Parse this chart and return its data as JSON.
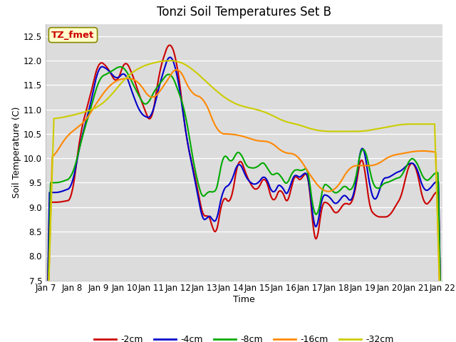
{
  "title": "Tonzi Soil Temperatures Set B",
  "xlabel": "Time",
  "ylabel": "Soil Temperature (C)",
  "ylim": [
    7.5,
    12.75
  ],
  "yticks": [
    7.5,
    8.0,
    8.5,
    9.0,
    9.5,
    10.0,
    10.5,
    11.0,
    11.5,
    12.0,
    12.5
  ],
  "xtick_labels": [
    "Jan 7",
    "Jan 8",
    "Jan 9",
    "Jan 10",
    "Jan 11",
    "Jan 12",
    "Jan 13",
    "Jan 14",
    "Jan 15",
    "Jan 16",
    "Jan 17",
    "Jan 18",
    "Jan 19",
    "Jan 20",
    "Jan 21",
    "Jan 22"
  ],
  "colors": {
    "-2cm": "#cc0000",
    "-4cm": "#0000cc",
    "-8cm": "#00aa00",
    "-16cm": "#ff8800",
    "-32cm": "#cccc00"
  },
  "legend_label": "TZ_fmet",
  "legend_box_facecolor": "#ffffcc",
  "legend_text_color": "#cc0000",
  "plot_bg_color": "#dcdcdc",
  "grid_color": "#ffffff",
  "linewidth": 1.5,
  "title_fontsize": 12,
  "axis_label_fontsize": 9,
  "tick_fontsize": 8.5
}
